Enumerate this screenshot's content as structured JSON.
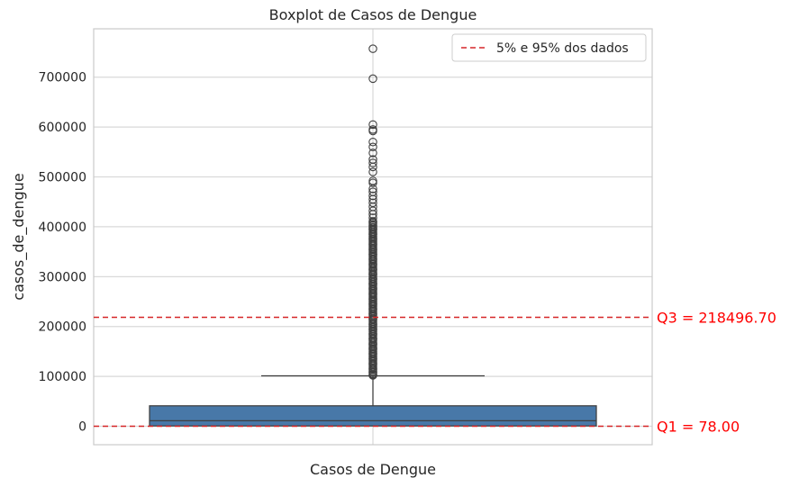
{
  "chart_data": {
    "type": "box",
    "title": "Boxplot de Casos de Dengue",
    "xlabel": "Casos de Dengue",
    "ylabel": "casos_de_dengue",
    "ylim": [
      -37000,
      797000
    ],
    "yticks": [
      0,
      100000,
      200000,
      300000,
      400000,
      500000,
      600000,
      700000
    ],
    "grid": true,
    "box": {
      "q1": 600,
      "median": 11000,
      "q3": 41000,
      "whisker_low": 0,
      "whisker_high": 101000,
      "color": "#4878a8",
      "outliers": [
        757000,
        697000,
        605000,
        595000,
        592000,
        570000,
        560000,
        548000,
        535000,
        528000,
        520000,
        510000,
        492000,
        488000,
        476000,
        470000,
        462000,
        455000,
        448000,
        440000,
        432000,
        425000,
        418000,
        410000,
        402000,
        395000,
        385000,
        375000,
        365000,
        355000,
        345000,
        335000,
        325000,
        315000,
        305000,
        295000,
        285000,
        275000,
        265000,
        255000,
        245000,
        235000,
        225000,
        215000,
        205000,
        195000,
        185000,
        175000,
        165000,
        155000,
        145000,
        135000,
        125000,
        115000,
        108000,
        103000
      ]
    },
    "reference_lines": [
      {
        "value": 218496.7,
        "label": "Q3 = 218496.70",
        "color": "#d62728"
      },
      {
        "value": 78.0,
        "label": "Q1 = 78.00",
        "color": "#d62728"
      }
    ],
    "legend": {
      "position": "top-right",
      "entries": [
        {
          "label": "5% e 95% dos dados",
          "color": "#d62728",
          "style": "dashed"
        }
      ]
    }
  }
}
